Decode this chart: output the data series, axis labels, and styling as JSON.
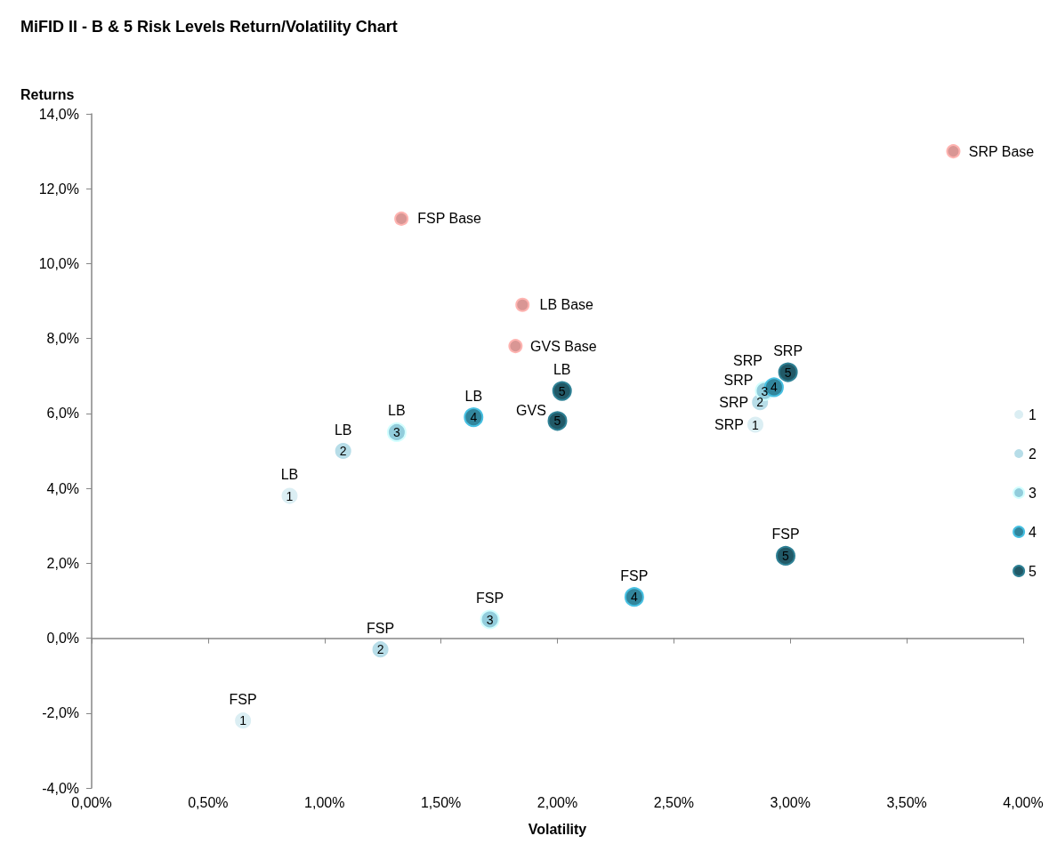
{
  "chart_data": {
    "type": "scatter",
    "title": "MiFID II - B & 5 Risk Levels Return/Volatility Chart",
    "xlabel": "Volatility",
    "ylabel": "Returns",
    "xlim": [
      0,
      4
    ],
    "ylim": [
      -4,
      14
    ],
    "xticks": [
      {
        "value": 0,
        "label": "0,00%"
      },
      {
        "value": 0.5,
        "label": "0,50%"
      },
      {
        "value": 1,
        "label": "1,00%"
      },
      {
        "value": 1.5,
        "label": "1,50%"
      },
      {
        "value": 2,
        "label": "2,00%"
      },
      {
        "value": 2.5,
        "label": "2,50%"
      },
      {
        "value": 3,
        "label": "3,00%"
      },
      {
        "value": 3.5,
        "label": "3,50%"
      },
      {
        "value": 4,
        "label": "4,00%"
      }
    ],
    "yticks": [
      {
        "value": -4,
        "label": "-4,0%"
      },
      {
        "value": -2,
        "label": "-2,0%"
      },
      {
        "value": 0,
        "label": "0,0%"
      },
      {
        "value": 2,
        "label": "2,0%"
      },
      {
        "value": 4,
        "label": "4,0%"
      },
      {
        "value": 6,
        "label": "6,0%"
      },
      {
        "value": 8,
        "label": "8,0%"
      },
      {
        "value": 10,
        "label": "10,0%"
      },
      {
        "value": 12,
        "label": "12,0%"
      },
      {
        "value": 14,
        "label": "14,0%"
      }
    ],
    "legend": "right",
    "marker": "circle",
    "series": [
      {
        "color": "#d99694",
        "x": [
          1.33,
          1.85,
          1.82,
          3.7
        ],
        "values": [
          11.2,
          8.9,
          7.8,
          13.0
        ],
        "value_labels": [
          "FSP Base",
          "LB Base",
          "GVS Base",
          "SRP Base"
        ]
      },
      {
        "name": "1",
        "color": "#dbeef3",
        "x": [
          0.85,
          0.65,
          null,
          2.85
        ],
        "values": [
          3.8,
          -2.2,
          null,
          5.7
        ],
        "value_labels": [
          "LB",
          "FSP",
          null,
          "SRP"
        ]
      },
      {
        "name": "2",
        "color": "#b7dde8",
        "x": [
          1.08,
          1.24,
          null,
          2.87
        ],
        "values": [
          5.0,
          -0.3,
          null,
          6.3
        ],
        "value_labels": [
          "LB",
          "FSP",
          null,
          "SRP"
        ]
      },
      {
        "name": "3",
        "color": "#92cddc",
        "x": [
          1.31,
          1.71,
          null,
          2.89
        ],
        "values": [
          5.5,
          0.5,
          null,
          6.6
        ],
        "value_labels": [
          "LB",
          "FSP",
          null,
          "SRP"
        ]
      },
      {
        "name": "4",
        "color": "#31859c",
        "x": [
          1.64,
          2.33,
          null,
          2.93
        ],
        "values": [
          5.9,
          1.1,
          null,
          6.7
        ],
        "value_labels": [
          "LB",
          "FSP",
          null,
          "SRP"
        ]
      },
      {
        "name": "5",
        "color": "#215967",
        "x": [
          2.02,
          2.98,
          2.0,
          2.99
        ],
        "values": [
          6.6,
          2.2,
          5.8,
          7.1
        ],
        "value_labels": [
          "LB",
          "FSP",
          "GVS",
          "SRP"
        ]
      }
    ]
  }
}
